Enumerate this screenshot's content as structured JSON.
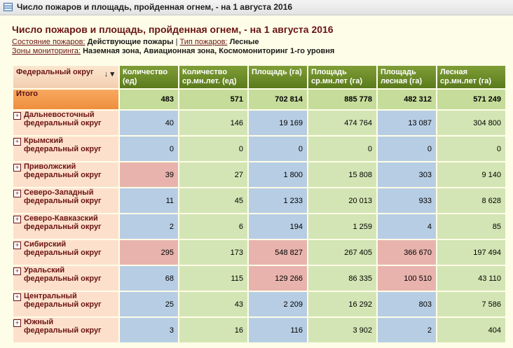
{
  "window": {
    "title": "Число пожаров и площадь, пройденная огнем, - на 1 августа 2016"
  },
  "report": {
    "title": "Число пожаров и площадь, пройденная огнем, - на 1 августа 2016",
    "filters": {
      "state_label": "Состояние пожаров:",
      "state_value": "Действующие пожары",
      "separator": "|",
      "type_label": "Тип пожаров:",
      "type_value": "Лесные",
      "zones_label": "Зоны мониторинга:",
      "zones_value": "Наземная зона, Авиационная зона, Космомониторинг 1-го уровня"
    }
  },
  "table": {
    "dim_header": "Федеральный округ",
    "sort_icons": "↓ ▾",
    "columns": [
      "Количество (ед)",
      "Количество ср.мн.лет. (ед)",
      "Площадь (га)",
      "Площадь ср.мн.лет (га)",
      "Площадь лесная (га)",
      "Лесная ср.мн.лет (га)"
    ],
    "total": {
      "label": "Итого",
      "values": [
        "483",
        "571",
        "702 814",
        "885 778",
        "482 312",
        "571 249"
      ]
    },
    "rows": [
      {
        "label": "Дальневосточный федеральный округ",
        "values": [
          "40",
          "146",
          "19 169",
          "474 764",
          "13 087",
          "304 800"
        ],
        "colors": [
          "b",
          "g",
          "b",
          "g",
          "b",
          "g"
        ]
      },
      {
        "label": "Крымский федеральный округ",
        "values": [
          "0",
          "0",
          "0",
          "0",
          "0",
          "0"
        ],
        "colors": [
          "b",
          "g",
          "b",
          "g",
          "b",
          "g"
        ]
      },
      {
        "label": "Приволжский федеральный округ",
        "values": [
          "39",
          "27",
          "1 800",
          "15 808",
          "303",
          "9 140"
        ],
        "colors": [
          "r",
          "g",
          "b",
          "g",
          "b",
          "g"
        ]
      },
      {
        "label": "Северо-Западный федеральный округ",
        "values": [
          "11",
          "45",
          "1 233",
          "20 013",
          "933",
          "8 628"
        ],
        "colors": [
          "b",
          "g",
          "b",
          "g",
          "b",
          "g"
        ]
      },
      {
        "label": "Северо-Кавказский федеральный округ",
        "values": [
          "2",
          "6",
          "194",
          "1 259",
          "4",
          "85"
        ],
        "colors": [
          "b",
          "g",
          "b",
          "g",
          "b",
          "g"
        ]
      },
      {
        "label": "Сибирский федеральный округ",
        "values": [
          "295",
          "173",
          "548 827",
          "267 405",
          "366 670",
          "197 494"
        ],
        "colors": [
          "r",
          "g",
          "r",
          "g",
          "r",
          "g"
        ]
      },
      {
        "label": "Уральский федеральный округ",
        "values": [
          "68",
          "115",
          "129 266",
          "86 335",
          "100 510",
          "43 110"
        ],
        "colors": [
          "b",
          "g",
          "r",
          "g",
          "r",
          "g"
        ]
      },
      {
        "label": "Центральный федеральный округ",
        "values": [
          "25",
          "43",
          "2 209",
          "16 292",
          "803",
          "7 586"
        ],
        "colors": [
          "b",
          "g",
          "b",
          "g",
          "b",
          "g"
        ]
      },
      {
        "label": "Южный федеральный округ",
        "values": [
          "3",
          "16",
          "116",
          "3 902",
          "2",
          "404"
        ],
        "colors": [
          "b",
          "g",
          "b",
          "g",
          "b",
          "g"
        ]
      }
    ]
  }
}
